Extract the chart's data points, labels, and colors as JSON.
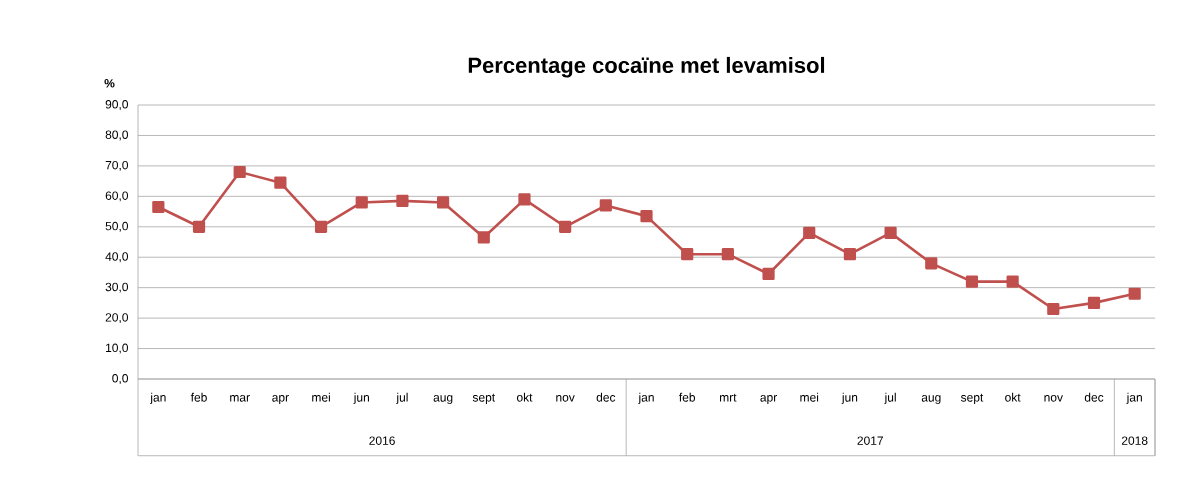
{
  "chart_data": {
    "type": "line",
    "title": "Percentage cocaïne met levamisol",
    "ylabel": "%",
    "categories": [
      "jan",
      "feb",
      "mar",
      "apr",
      "mei",
      "jun",
      "jul",
      "aug",
      "sept",
      "okt",
      "nov",
      "dec",
      "jan",
      "feb",
      "mrt",
      "apr",
      "mei",
      "jun",
      "jul",
      "aug",
      "sept",
      "okt",
      "nov",
      "dec",
      "jan"
    ],
    "series": [
      {
        "color": "#c0504d",
        "values": [
          56.5,
          50,
          68,
          64.5,
          50,
          58,
          58.5,
          58,
          46.5,
          59,
          50,
          57,
          53.5,
          41,
          41,
          34.5,
          48,
          41,
          48,
          38,
          32,
          32,
          23,
          25,
          28
        ]
      }
    ],
    "annotations": [
      "2016",
      "2017",
      "2018"
    ],
    "ylim": [
      0,
      90
    ],
    "yticks": [
      {
        "value": 0,
        "label": "0,0"
      },
      {
        "value": 10,
        "label": "10,0"
      },
      {
        "value": 20,
        "label": "20,0"
      },
      {
        "value": 30,
        "label": "30,0"
      },
      {
        "value": 40,
        "label": "40,0"
      },
      {
        "value": 50,
        "label": "50,0"
      },
      {
        "value": 60,
        "label": "60,0"
      },
      {
        "value": 70,
        "label": "70,0"
      },
      {
        "value": 80,
        "label": "80,0"
      },
      {
        "value": 90,
        "label": "90,0"
      }
    ],
    "grid": "y",
    "marker": "square",
    "line_style": "solid"
  }
}
